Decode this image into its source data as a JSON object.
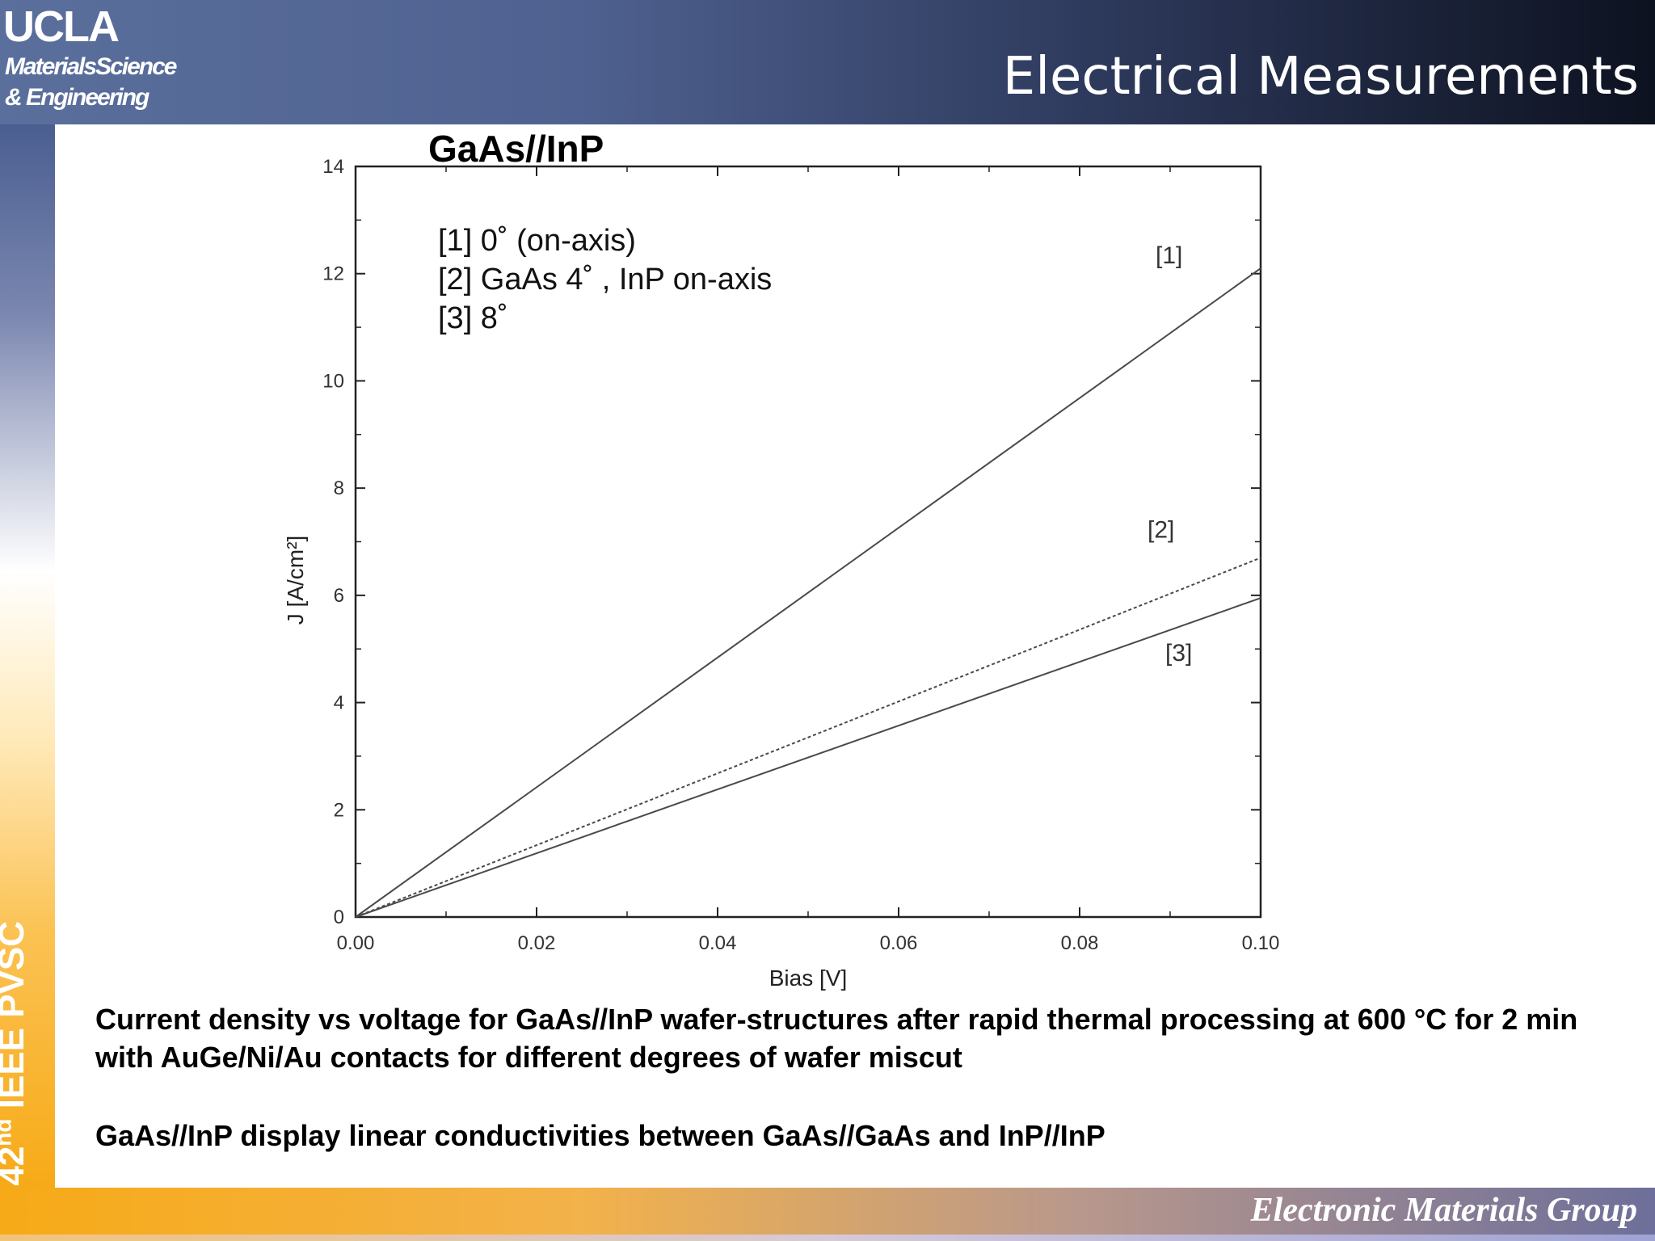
{
  "header": {
    "logo_text": "UCLA",
    "dept_line_1": "MaterialsScience",
    "dept_line_2": "& Engineering",
    "title": "Electrical Measurements"
  },
  "sidebar": {
    "conference_number": "42",
    "conference_suffix": "nd",
    "conference_name": "IEEE PVSC"
  },
  "footer": {
    "group_name": "Electronic Materials Group"
  },
  "caption": {
    "line_1": "Current density vs voltage for GaAs//InP wafer-structures after rapid thermal processing at 600 °C for 2 min with AuGe/Ni/Au contacts for different degrees of wafer miscut",
    "line_2": "GaAs//InP display linear conductivities between GaAs//GaAs and InP//InP"
  },
  "chart_data": {
    "type": "line",
    "title": "GaAs//InP",
    "xlabel": "Bias [V]",
    "ylabel": "J [A/cm²]",
    "xlim": [
      0,
      0.1
    ],
    "ylim": [
      0,
      14
    ],
    "x_ticks": [
      "0.00",
      "0.02",
      "0.04",
      "0.06",
      "0.08",
      "0.10"
    ],
    "y_ticks": [
      "0",
      "2",
      "4",
      "6",
      "8",
      "10",
      "12",
      "14"
    ],
    "legend": [
      "[1] 0˚  (on-axis)",
      "[2] GaAs 4˚  , InP on-axis",
      "[3] 8˚"
    ],
    "legend_position": "top-left",
    "grid": false,
    "series": [
      {
        "name": "[1]",
        "x": [
          0,
          0.1
        ],
        "y": [
          0,
          12.1
        ],
        "style": "solid"
      },
      {
        "name": "[2]",
        "x": [
          0,
          0.1
        ],
        "y": [
          0,
          6.7
        ],
        "style": "dotted"
      },
      {
        "name": "[3]",
        "x": [
          0,
          0.1
        ],
        "y": [
          0,
          5.95
        ],
        "style": "solid"
      }
    ],
    "series_label_text": [
      "[1]",
      "[2]",
      "[3]"
    ],
    "colors": {
      "line": "#4a4a4a",
      "axis": "#222222"
    }
  }
}
